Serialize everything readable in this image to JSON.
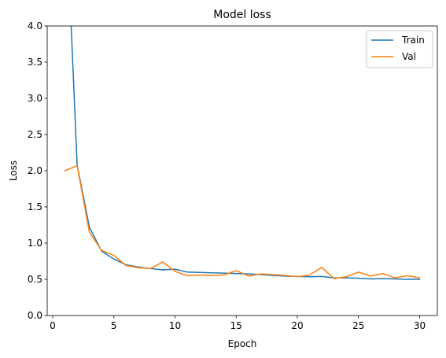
{
  "chart_data": {
    "type": "line",
    "title": "Model loss",
    "xlabel": "Epoch",
    "ylabel": "Loss",
    "xlim": [
      -0.45,
      31.45
    ],
    "ylim": [
      0.0,
      4.0
    ],
    "xticks": [
      0,
      5,
      10,
      15,
      20,
      25,
      30
    ],
    "xtick_labels": [
      "0",
      "5",
      "10",
      "15",
      "20",
      "25",
      "30"
    ],
    "yticks": [
      0.0,
      0.5,
      1.0,
      1.5,
      2.0,
      2.5,
      3.0,
      3.5,
      4.0
    ],
    "ytick_labels": [
      "0.0",
      "0.5",
      "1.0",
      "1.5",
      "2.0",
      "2.5",
      "3.0",
      "3.5",
      "4.0"
    ],
    "grid": false,
    "legend_position": "upper right",
    "x": [
      1,
      2,
      3,
      4,
      5,
      6,
      7,
      8,
      9,
      10,
      11,
      12,
      13,
      14,
      15,
      16,
      17,
      18,
      19,
      20,
      21,
      22,
      23,
      24,
      25,
      26,
      27,
      28,
      29,
      30
    ],
    "series": [
      {
        "name": "Train",
        "color": "#1f77b4",
        "values": [
          6.0,
          2.08,
          1.22,
          0.89,
          0.78,
          0.7,
          0.67,
          0.65,
          0.63,
          0.64,
          0.6,
          0.595,
          0.59,
          0.585,
          0.58,
          0.575,
          0.565,
          0.555,
          0.545,
          0.54,
          0.535,
          0.54,
          0.52,
          0.52,
          0.515,
          0.505,
          0.51,
          0.505,
          0.5,
          0.5
        ]
      },
      {
        "name": "Val",
        "color": "#ff7f0e",
        "values": [
          2.0,
          2.07,
          1.15,
          0.9,
          0.83,
          0.69,
          0.66,
          0.65,
          0.74,
          0.61,
          0.55,
          0.56,
          0.55,
          0.56,
          0.62,
          0.545,
          0.575,
          0.565,
          0.555,
          0.535,
          0.56,
          0.665,
          0.51,
          0.535,
          0.6,
          0.545,
          0.58,
          0.52,
          0.55,
          0.52
        ]
      }
    ]
  }
}
